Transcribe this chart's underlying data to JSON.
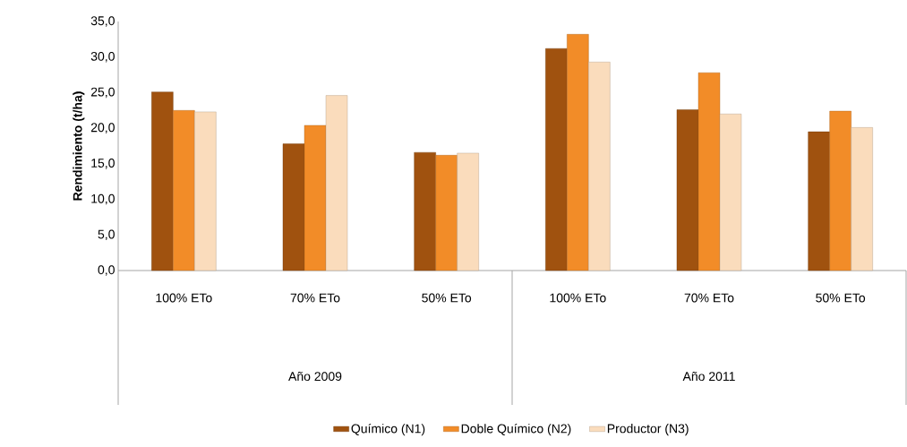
{
  "chart_data": {
    "type": "bar",
    "ylabel": "Rendimiento (t/ha)",
    "categories": [
      "100% ETo",
      "70% ETo",
      "50% ETo",
      "100% ETo",
      "70% ETo",
      "50% ETo"
    ],
    "series": [
      {
        "name": "Químico (N1)",
        "color": "#a0520f",
        "values": [
          25.1,
          17.8,
          16.6,
          31.2,
          22.6,
          19.5
        ]
      },
      {
        "name": "Doble Químico (N2)",
        "color": "#f28c28",
        "values": [
          22.5,
          20.4,
          16.2,
          33.2,
          27.8,
          22.4
        ]
      },
      {
        "name": "Productor (N3)",
        "color": "#fadcbc",
        "values": [
          22.3,
          24.6,
          16.5,
          29.3,
          22.0,
          20.1
        ]
      }
    ],
    "ylim": [
      0,
      35
    ],
    "yticks": [
      {
        "value": 0,
        "label": "0,0"
      },
      {
        "value": 5,
        "label": "5,0"
      },
      {
        "value": 10,
        "label": "10,0"
      },
      {
        "value": 15,
        "label": "15,0"
      },
      {
        "value": 20,
        "label": "20,0"
      },
      {
        "value": 25,
        "label": "25,0"
      },
      {
        "value": 30,
        "label": "30,0"
      },
      {
        "value": 35,
        "label": "35,0"
      }
    ],
    "annotations": [
      "Año 2009",
      "Año 2011"
    ],
    "legend": "bottom",
    "grid": false
  }
}
